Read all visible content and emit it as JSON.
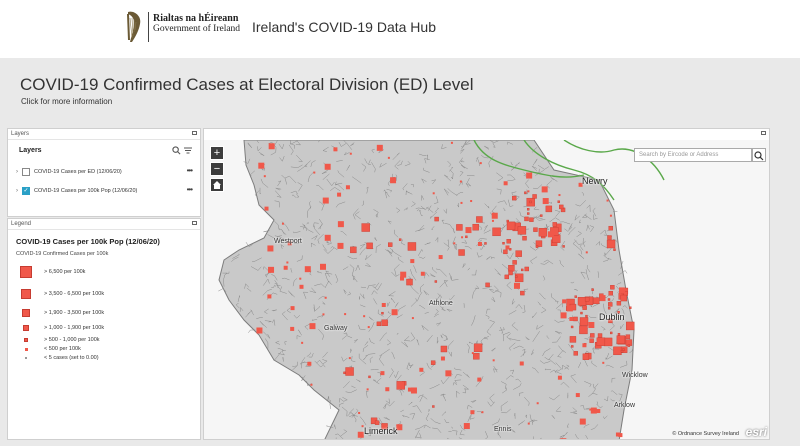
{
  "header": {
    "gov_line1": "Rialtas na hÉireann",
    "gov_line2": "Government of Ireland",
    "hub_title": "Ireland's COVID-19 Data Hub"
  },
  "page": {
    "title": "COVID-19 Confirmed Cases at Electoral Division (ED) Level",
    "subtitle": "Click for more information"
  },
  "layers_panel": {
    "header": "Layers",
    "title": "Layers",
    "items": [
      {
        "label": "COVID-19 Cases per ED (12/06/20)",
        "checked": false
      },
      {
        "label": "COVID-19 Cases per 100k Pop (12/06/20)",
        "checked": true
      }
    ]
  },
  "legend_panel": {
    "header": "Legend",
    "title": "COVID-19 Cases per 100k Pop (12/06/20)",
    "subtitle": "COVID-19 Confirmed Cases per 100k",
    "entries": [
      {
        "label": "> 6,500 per 100k"
      },
      {
        "label": "> 3,500 - 6,500 per 100k"
      },
      {
        "label": "> 1,900 - 3,500 per 100k"
      },
      {
        "label": "> 1,000 - 1,900 per 100k"
      },
      {
        "label": "> 500 - 1,000 per 100k"
      },
      {
        "label": "< 500 per 100k"
      },
      {
        "label": "< 5 cases (set to 0.00)"
      }
    ]
  },
  "map": {
    "search_placeholder": "Search by Eircode or Address",
    "credits": "© Ordnance Survey Ireland",
    "esri_logo": "esri",
    "zoom_in": "+",
    "zoom_out": "−",
    "places": [
      "Newry",
      "Galway",
      "Athlone",
      "Dublin",
      "Arklow",
      "Wicklow",
      "Limerick",
      "Westport",
      "Ennis"
    ],
    "marker_color": "#f0584a",
    "boundary_color": "#8a8a8a",
    "sea_color": "#ffffff",
    "land_color": "#c9c9c9"
  }
}
